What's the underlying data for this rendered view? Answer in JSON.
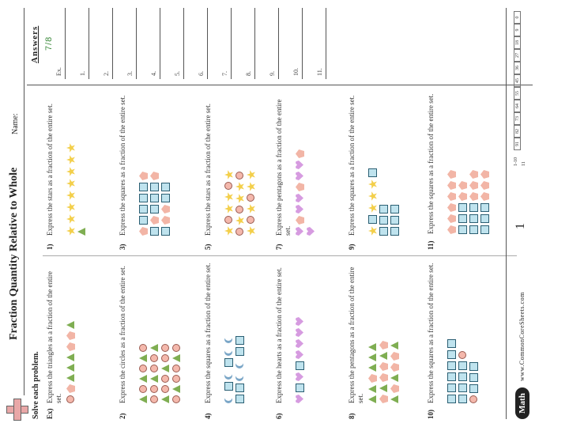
{
  "header": {
    "title": "Fraction Quantity Relative to Whole",
    "name_label": "Name:",
    "instructions": "Solve each problem.",
    "answers_label": "Answers"
  },
  "problems": [
    {
      "num": "Ex)",
      "text": "Express the triangles as a fraction of the entire set."
    },
    {
      "num": "1)",
      "text": "Express the stars as a fraction of the entire set."
    },
    {
      "num": "2)",
      "text": "Express the circles as a fraction of the entire set."
    },
    {
      "num": "3)",
      "text": "Express the squares as a fraction of the entire set."
    },
    {
      "num": "4)",
      "text": "Express the squares as a fraction of the entire set."
    },
    {
      "num": "5)",
      "text": "Express the stars as a fraction of the entire set."
    },
    {
      "num": "6)",
      "text": "Express the hearts as a fraction of the entire set."
    },
    {
      "num": "7)",
      "text": "Express the pentagons as a fraction of the entire set."
    },
    {
      "num": "8)",
      "text": "Express the pentagons as a fraction of the entire set."
    },
    {
      "num": "9)",
      "text": "Express the squares as a fraction of the entire set."
    },
    {
      "num": "10)",
      "text": "Express the squares as a fraction of the entire set."
    },
    {
      "num": "11)",
      "text": "Express the squares as a fraction of the entire set."
    }
  ],
  "answers": {
    "example_numerator": "7",
    "example_denominator": "8",
    "labels": [
      "Ex.",
      "1.",
      "2.",
      "3.",
      "4.",
      "5.",
      "6.",
      "7.",
      "8.",
      "9.",
      "10.",
      "11."
    ]
  },
  "footer": {
    "brand": "Math",
    "site": "www.CommonCoreSheets.com",
    "page": "1"
  },
  "score": {
    "ranges": [
      "1-10",
      "11"
    ],
    "values": [
      "91",
      "82",
      "73",
      "64",
      "55",
      "45",
      "36",
      "27",
      "18",
      "9",
      "0"
    ]
  },
  "colors": {
    "square": "#bfe3ee",
    "circle": "#f4b8ac",
    "triangle": "#7fae52",
    "star": "#f3cf4a",
    "heart": "#d69be0",
    "answer_green": "#3b8a3b"
  }
}
